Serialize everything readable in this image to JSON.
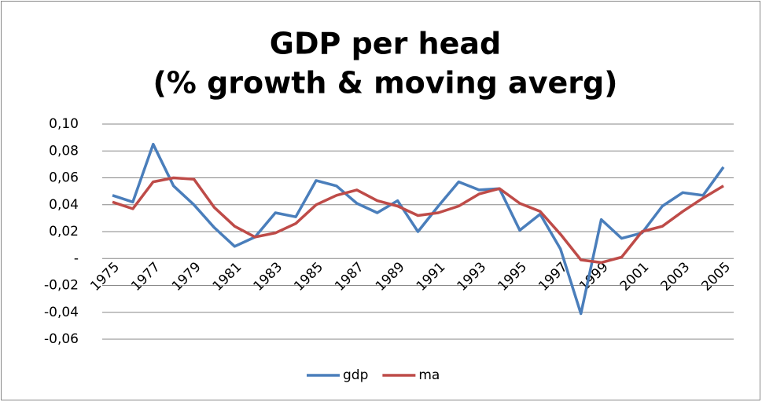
{
  "chart_data": {
    "type": "line",
    "title": [
      "GDP per head",
      "(% growth & moving averg)"
    ],
    "categories": [
      "1975",
      null,
      "1977",
      null,
      "1979",
      null,
      "1981",
      null,
      "1983",
      null,
      "1985",
      null,
      "1987",
      null,
      "1989",
      null,
      "1991",
      null,
      "1993",
      null,
      "1995",
      null,
      "1997",
      null,
      "1999",
      null,
      "2001",
      null,
      "2003",
      null,
      "2005"
    ],
    "series": [
      {
        "name": "gdp",
        "color": "#4a7ebb",
        "values": [
          0.047,
          0.042,
          0.085,
          0.054,
          0.04,
          0.023,
          0.009,
          0.016,
          0.034,
          0.031,
          0.058,
          0.054,
          0.041,
          0.034,
          0.043,
          0.02,
          0.039,
          0.057,
          0.051,
          0.052,
          0.021,
          0.033,
          0.007,
          -0.041,
          0.029,
          0.015,
          0.019,
          0.039,
          0.049,
          0.047,
          0.068
        ]
      },
      {
        "name": "ma",
        "color": "#be4b48",
        "values": [
          0.042,
          0.037,
          0.057,
          0.06,
          0.059,
          0.038,
          0.024,
          0.016,
          0.019,
          0.026,
          0.04,
          0.047,
          0.051,
          0.043,
          0.039,
          0.032,
          0.034,
          0.039,
          0.048,
          0.052,
          0.041,
          0.035,
          0.018,
          -0.001,
          -0.003,
          0.001,
          0.02,
          0.024,
          0.035,
          0.045,
          0.054
        ]
      }
    ],
    "ylim": [
      -0.06,
      0.1
    ],
    "yticks": [
      {
        "value": -0.06,
        "label": "-0,06"
      },
      {
        "value": -0.04,
        "label": "-0,04"
      },
      {
        "value": -0.02,
        "label": "-0,02"
      },
      {
        "value": 0,
        "label": "-"
      },
      {
        "value": 0.02,
        "label": "0,02"
      },
      {
        "value": 0.04,
        "label": "0,04"
      },
      {
        "value": 0.06,
        "label": "0,06"
      },
      {
        "value": 0.08,
        "label": "0,08"
      },
      {
        "value": 0.1,
        "label": "0,10"
      }
    ],
    "grid": true,
    "legend": "bottom"
  }
}
